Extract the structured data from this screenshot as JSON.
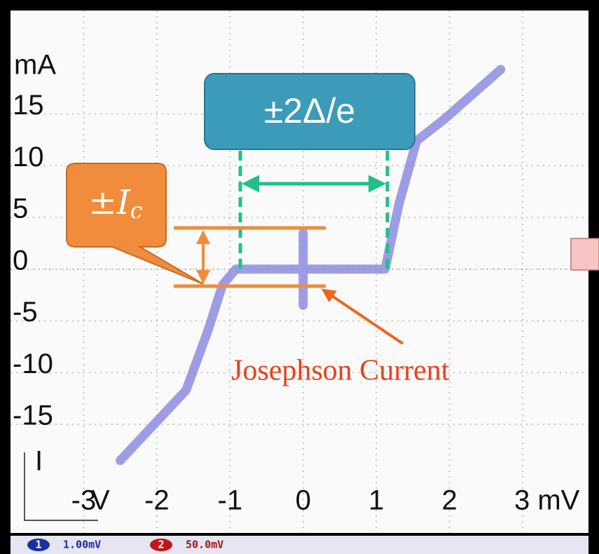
{
  "chart_data": {
    "type": "line",
    "x": [
      -2.5,
      -1.6,
      -1.3,
      -1.1,
      -0.92,
      0,
      0,
      0,
      0,
      0.98,
      1.12,
      1.31,
      1.55,
      1.93,
      2.7
    ],
    "series": [
      {
        "color": "#8c8ce0",
        "values": [
          -18.5,
          -11.7,
          -5.9,
          -1.5,
          0,
          0,
          -3.5,
          3.5,
          0,
          0,
          0,
          6.3,
          12.4,
          14.5,
          19.3
        ]
      }
    ],
    "xlim": [
      -4,
      3.9
    ],
    "ylim": [
      -25.5,
      25
    ],
    "xticks": [
      -3,
      -2,
      -1,
      0,
      1,
      2,
      {
        "value": 3,
        "label": "3 mV"
      }
    ],
    "yticks": [
      15,
      10,
      5,
      0,
      -5,
      -10,
      -15
    ],
    "grid": true,
    "y_unit": "mA",
    "y_label": "I",
    "x_label": "V",
    "annotations": {
      "gap": "±2Δ/e",
      "critical_current": {
        "prefix": "±",
        "symbol": "I",
        "subscript": "c"
      },
      "josephson": "Josephson Current"
    },
    "channels": [
      {
        "name": "1",
        "scale": "1.00mV"
      },
      {
        "name": "2",
        "scale": "50.0mV"
      }
    ]
  }
}
